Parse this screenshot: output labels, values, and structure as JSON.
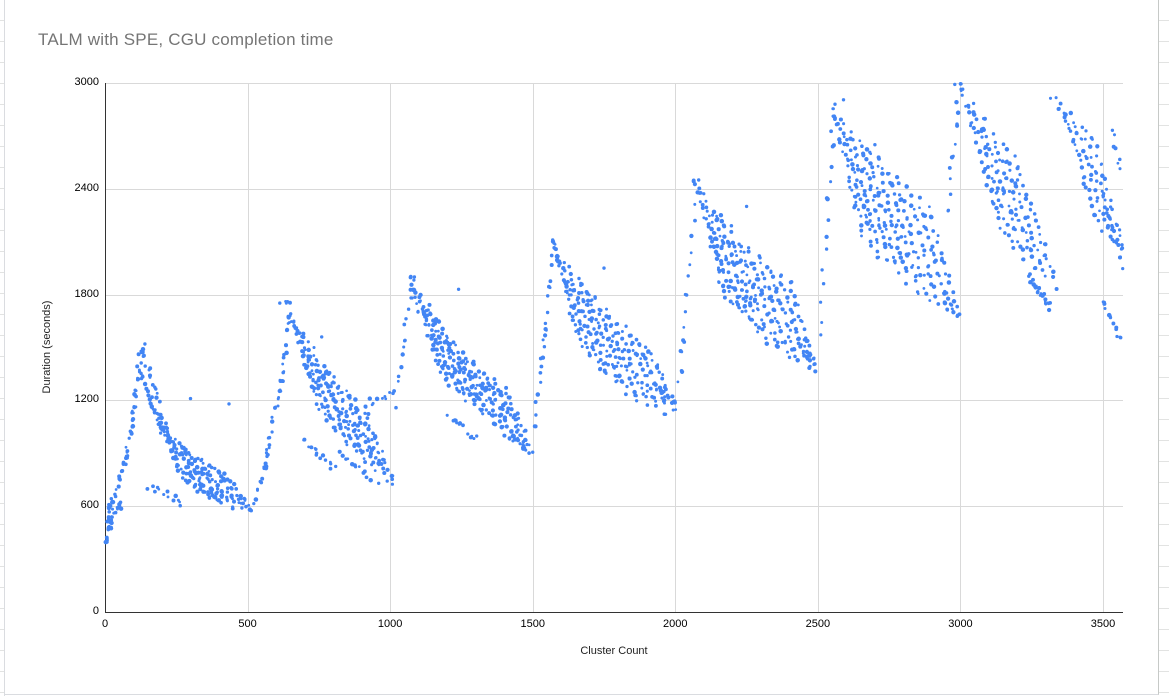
{
  "sheet": {
    "row_line_color": "#e2e3e2",
    "column_line_color": "#dadce0"
  },
  "chart_data": {
    "type": "scatter",
    "title": "TALM with SPE, CGU completion time",
    "title_color": "#757575",
    "grid": true,
    "legend": "none",
    "colors": {
      "point": "#4285f4",
      "gridline": "#d9d9d9",
      "axis": "#333333"
    },
    "x_axis": {
      "label": "Cluster Count",
      "min": 0,
      "max": 3570,
      "ticks": [
        0,
        500,
        1000,
        1500,
        2000,
        2500,
        3000,
        3500
      ]
    },
    "y_axis": {
      "label": "Duration (seconds)",
      "min": 0,
      "max": 3000,
      "ticks": [
        0,
        600,
        1200,
        1800,
        2400,
        3000
      ]
    },
    "series": [
      {
        "streak_format": "[cluster_start, duration_start, cluster_end, duration_end, n_points] — descending/ascending runs of completion-time samples",
        "streaks": [
          [
            3,
            390,
            18,
            620,
            20
          ],
          [
            15,
            480,
            55,
            620,
            12
          ],
          [
            25,
            600,
            80,
            920,
            14
          ],
          [
            55,
            750,
            105,
            1150,
            12
          ],
          [
            90,
            1020,
            128,
            1490,
            14
          ],
          [
            112,
            1440,
            200,
            1020,
            18
          ],
          [
            130,
            1500,
            235,
            930,
            20
          ],
          [
            152,
            1230,
            262,
            820,
            18
          ],
          [
            178,
            1120,
            292,
            730,
            18
          ],
          [
            210,
            1060,
            330,
            680,
            20
          ],
          [
            250,
            990,
            368,
            650,
            20
          ],
          [
            288,
            930,
            406,
            620,
            20
          ],
          [
            326,
            880,
            448,
            600,
            20
          ],
          [
            366,
            840,
            490,
            580,
            20
          ],
          [
            408,
            790,
            512,
            585,
            16
          ],
          [
            155,
            720,
            265,
            625,
            12
          ],
          [
            290,
            770,
            405,
            645,
            12
          ],
          [
            525,
            620,
            588,
            1020,
            12
          ],
          [
            558,
            860,
            636,
            1460,
            13
          ],
          [
            606,
            1160,
            654,
            1740,
            12
          ],
          [
            642,
            1730,
            748,
            1160,
            22
          ],
          [
            668,
            1650,
            782,
            1090,
            22
          ],
          [
            696,
            1565,
            812,
            1020,
            22
          ],
          [
            730,
            1480,
            846,
            960,
            22
          ],
          [
            764,
            1400,
            880,
            905,
            22
          ],
          [
            800,
            1330,
            916,
            855,
            22
          ],
          [
            836,
            1262,
            952,
            805,
            22
          ],
          [
            872,
            1200,
            988,
            762,
            21
          ],
          [
            908,
            1148,
            1012,
            722,
            20
          ],
          [
            700,
            960,
            805,
            815,
            12
          ],
          [
            820,
            905,
            932,
            762,
            12
          ],
          [
            935,
            1190,
            1008,
            1240,
            8
          ],
          [
            1015,
            1180,
            1078,
            1880,
            14
          ],
          [
            1070,
            1885,
            1178,
            1355,
            24
          ],
          [
            1100,
            1805,
            1206,
            1300,
            23
          ],
          [
            1132,
            1725,
            1238,
            1252,
            22
          ],
          [
            1163,
            1650,
            1268,
            1205,
            22
          ],
          [
            1194,
            1578,
            1298,
            1158,
            22
          ],
          [
            1226,
            1515,
            1330,
            1112,
            22
          ],
          [
            1260,
            1458,
            1364,
            1066,
            22
          ],
          [
            1294,
            1402,
            1400,
            1022,
            22
          ],
          [
            1330,
            1350,
            1436,
            982,
            20
          ],
          [
            1366,
            1302,
            1472,
            944,
            20
          ],
          [
            1402,
            1258,
            1496,
            908,
            18
          ],
          [
            1205,
            1105,
            1302,
            985,
            10
          ],
          [
            1418,
            1005,
            1492,
            922,
            8
          ],
          [
            1505,
            1055,
            1548,
            1620,
            10
          ],
          [
            1532,
            1400,
            1576,
            2085,
            12
          ],
          [
            1566,
            2105,
            1672,
            1505,
            24
          ],
          [
            1596,
            2025,
            1702,
            1448,
            23
          ],
          [
            1626,
            1950,
            1732,
            1395,
            22
          ],
          [
            1658,
            1888,
            1762,
            1342,
            22
          ],
          [
            1690,
            1822,
            1796,
            1292,
            22
          ],
          [
            1724,
            1760,
            1830,
            1252,
            22
          ],
          [
            1758,
            1702,
            1864,
            1212,
            22
          ],
          [
            1794,
            1650,
            1900,
            1180,
            20
          ],
          [
            1830,
            1602,
            1936,
            1158,
            20
          ],
          [
            1866,
            1558,
            1972,
            1140,
            18
          ],
          [
            1902,
            1518,
            2006,
            1128,
            16
          ],
          [
            1938,
            1252,
            2002,
            1182,
            8
          ],
          [
            2015,
            1300,
            2076,
            2390,
            14
          ],
          [
            2070,
            2445,
            2172,
            1805,
            24
          ],
          [
            2100,
            2362,
            2202,
            1742,
            23
          ],
          [
            2130,
            2292,
            2232,
            1688,
            22
          ],
          [
            2161,
            2228,
            2262,
            1638,
            22
          ],
          [
            2192,
            2168,
            2292,
            1590,
            22
          ],
          [
            2224,
            2108,
            2324,
            1542,
            22
          ],
          [
            2258,
            2050,
            2358,
            1498,
            22
          ],
          [
            2292,
            1998,
            2394,
            1458,
            20
          ],
          [
            2328,
            1948,
            2430,
            1428,
            20
          ],
          [
            2364,
            1900,
            2466,
            1400,
            18
          ],
          [
            2400,
            1852,
            2496,
            1378,
            16
          ],
          [
            2432,
            1505,
            2492,
            1422,
            8
          ],
          [
            2505,
            1555,
            2556,
            2830,
            14
          ],
          [
            2552,
            2872,
            2658,
            2152,
            25
          ],
          [
            2582,
            2798,
            2688,
            2092,
            24
          ],
          [
            2612,
            2738,
            2718,
            2035,
            23
          ],
          [
            2644,
            2678,
            2748,
            1982,
            22
          ],
          [
            2676,
            2618,
            2780,
            1930,
            22
          ],
          [
            2710,
            2560,
            2814,
            1880,
            22
          ],
          [
            2744,
            2502,
            2850,
            1832,
            20
          ],
          [
            2780,
            2448,
            2886,
            1788,
            20
          ],
          [
            2816,
            2398,
            2922,
            1748,
            18
          ],
          [
            2852,
            2350,
            2958,
            1712,
            18
          ],
          [
            2888,
            2302,
            2992,
            1680,
            16
          ],
          [
            2940,
            1805,
            2992,
            1655,
            8
          ],
          [
            2955,
            2280,
            2996,
            2985,
            10
          ],
          [
            3006,
            2952,
            3150,
            2150,
            26
          ],
          [
            3040,
            2870,
            3185,
            2085,
            25
          ],
          [
            3075,
            2790,
            3222,
            2022,
            24
          ],
          [
            3112,
            2712,
            3260,
            1962,
            23
          ],
          [
            3150,
            2638,
            3298,
            1905,
            22
          ],
          [
            3190,
            2565,
            3335,
            1852,
            21
          ],
          [
            3240,
            1905,
            3316,
            1722,
            20
          ],
          [
            3318,
            2932,
            3378,
            2780,
            5
          ],
          [
            3352,
            2885,
            3490,
            2170,
            22
          ],
          [
            3390,
            2818,
            3528,
            2105,
            20
          ],
          [
            3428,
            2748,
            3562,
            2042,
            18
          ],
          [
            3466,
            2675,
            3570,
            2080,
            14
          ],
          [
            3495,
            2392,
            3566,
            1968,
            10
          ],
          [
            3500,
            1768,
            3560,
            1552,
            10
          ],
          [
            3530,
            2718,
            3570,
            2478,
            8
          ]
        ],
        "extra_points": [
          [
            140,
            1520
          ],
          [
            640,
            1760
          ],
          [
            613,
            1752
          ],
          [
            1085,
            1900
          ],
          [
            1570,
            2110
          ],
          [
            2082,
            2450
          ],
          [
            2560,
            2880
          ],
          [
            2590,
            2905
          ],
          [
            2980,
            2992
          ],
          [
            3008,
            2965
          ],
          [
            435,
            1180
          ],
          [
            300,
            1210
          ],
          [
            760,
            1560
          ],
          [
            1240,
            1830
          ],
          [
            1750,
            1950
          ],
          [
            2250,
            2300
          ],
          [
            2700,
            2650
          ],
          [
            3200,
            2450
          ],
          [
            1960,
            1250
          ],
          [
            2460,
            1450
          ],
          [
            960,
            730
          ],
          [
            480,
            590
          ]
        ]
      }
    ]
  }
}
